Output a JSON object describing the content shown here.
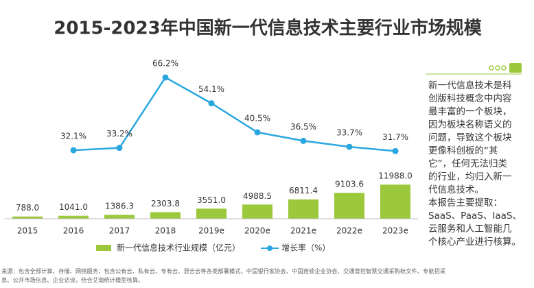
{
  "chart_data": {
    "type": "bar-line",
    "title": "2015-2023年中国新一代信息技术主要行业市场规模",
    "categories": [
      "2015",
      "2016",
      "2017",
      "2018",
      "2019e",
      "2020e",
      "2021e",
      "2022e",
      "2023e"
    ],
    "ylim": [
      0,
      60000
    ],
    "y2lim": [
      0,
      80
    ],
    "series": [
      {
        "name": "新一代信息技术行业规模（亿元）",
        "type": "bar",
        "color": "#9cc83c",
        "values": [
          788.0,
          1041.0,
          1386.3,
          2303.8,
          3551.0,
          4988.5,
          6811.4,
          9103.6,
          11988.0
        ],
        "value_labels": [
          "788.0",
          "1041.0",
          "1386.3",
          "2303.8",
          "3551.0",
          "4988.5",
          "6811.4",
          "9103.6",
          "11988.0"
        ]
      },
      {
        "name": "增长率（%）",
        "type": "line",
        "axis": "y2",
        "color": "#2aa7df",
        "values": [
          null,
          32.1,
          33.2,
          66.2,
          54.1,
          40.5,
          36.5,
          33.7,
          31.7
        ],
        "value_labels": [
          null,
          "32.1%",
          "33.2%",
          "66.2%",
          "54.1%",
          "40.5%",
          "36.5%",
          "33.7%",
          "31.7%"
        ]
      }
    ]
  },
  "side_note": [
    "新一代信息技术是科",
    "创版科技概念中内容",
    "最丰富的一个板块，",
    "因为板块名称语义的",
    "问题，导致这个板块",
    "更像科创板的“其",
    "它”，任何无法归类",
    "的行业，均归入新一",
    "代信息技术。",
    "本报告主要提取：",
    "SaaS、PaaS、IaaS、",
    "云服务和人工智能几",
    "个核心产业进行核算。"
  ],
  "source": [
    "来源：包含全部计算、存储、网络服务；包含公有云、私有云、专有云、混合云等各类部署模式。中国银行家协会、中国连锁企业协会、交通营控智慧交通采购标文件、专航招采",
    "息、公开市场信息、企业访谈，结合艾瑞统计模型核算。"
  ]
}
